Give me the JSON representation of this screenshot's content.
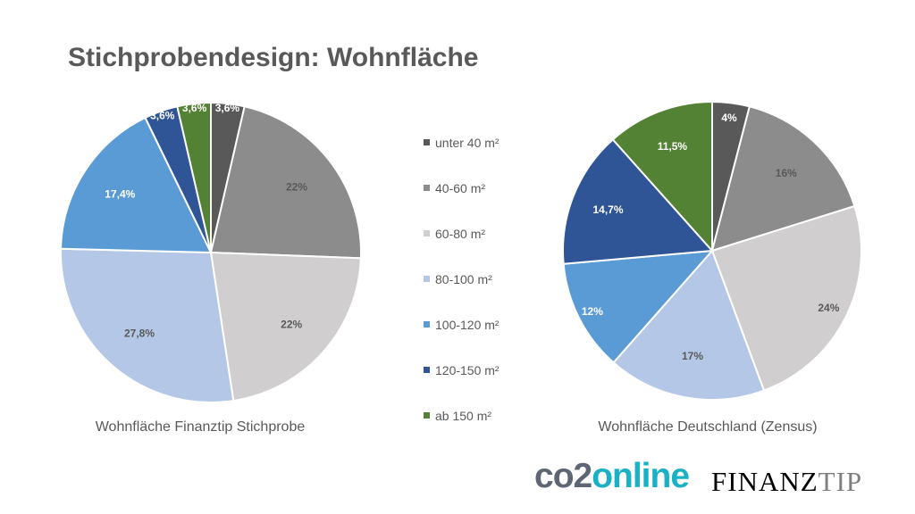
{
  "slide": {
    "title": "Stichprobendesign: Wohnfläche"
  },
  "colors": {
    "unter_40": "#595959",
    "40_60": "#8c8c8c",
    "60_80": "#d0cece",
    "80_100": "#b4c7e7",
    "100_120": "#5b9bd5",
    "120_150": "#2f5597",
    "ab_150": "#548235"
  },
  "legend": [
    {
      "label": "unter 40 m²",
      "color": "#595959"
    },
    {
      "label": "40-60 m²",
      "color": "#8c8c8c"
    },
    {
      "label": "60-80 m²",
      "color": "#d0cece"
    },
    {
      "label": "80-100 m²",
      "color": "#b4c7e7"
    },
    {
      "label": "100-120 m²",
      "color": "#5b9bd5"
    },
    {
      "label": "120-150 m²",
      "color": "#2f5597"
    },
    {
      "label": "ab 150 m²",
      "color": "#548235"
    }
  ],
  "chart_data": [
    {
      "type": "pie",
      "title": "Wohnfläche Finanztip Stichprobe",
      "categories": [
        "unter 40 m²",
        "40-60 m²",
        "60-80 m²",
        "80-100 m²",
        "100-120 m²",
        "120-150 m²",
        "ab 150 m²"
      ],
      "values": [
        3.6,
        22,
        22,
        27.8,
        17.4,
        3.6,
        3.6
      ],
      "labels": [
        "3,6%",
        "22%",
        "22%",
        "27,8%",
        "17,4%",
        "3,6%",
        "3,6%"
      ],
      "legend": "center between charts"
    },
    {
      "type": "pie",
      "title": "Wohnfläche Deutschland (Zensus)",
      "categories": [
        "unter 40 m²",
        "40-60 m²",
        "60-80 m²",
        "80-100 m²",
        "100-120 m²",
        "120-150 m²",
        "ab 150 m²"
      ],
      "values": [
        4,
        16,
        24,
        17,
        12,
        14.7,
        11.5
      ],
      "labels": [
        "4%",
        "16%",
        "24%",
        "17%",
        "12%",
        "14,7%",
        "11,5%"
      ],
      "legend": "center between charts"
    }
  ],
  "logos": {
    "co2_part1": "co2",
    "co2_part2": "online",
    "finanztip_part1": "FINANZ",
    "finanztip_part2": "TIP"
  }
}
